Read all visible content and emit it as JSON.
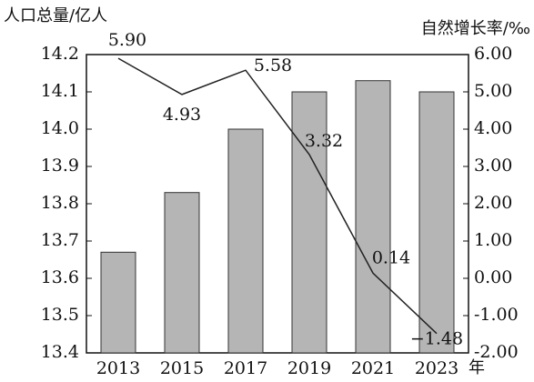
{
  "chart_data": {
    "type": "bar",
    "y_label": "人口总量/亿人",
    "y2_label": "自然增长率/‰",
    "x_unit": "年",
    "categories": [
      "2013",
      "2015",
      "2017",
      "2019",
      "2021",
      "2023"
    ],
    "series": [
      {
        "type": "bar",
        "color": "#b5b5b5",
        "values": [
          13.67,
          13.83,
          14.0,
          14.1,
          14.13,
          14.1
        ]
      },
      {
        "type": "line",
        "axis": "y2",
        "color": "#222222",
        "values": [
          5.9,
          4.93,
          5.58,
          3.32,
          0.14,
          -1.48
        ],
        "value_labels": [
          "5.90",
          "4.93",
          "5.58",
          "3.32",
          "0.14",
          "−1.48"
        ]
      }
    ],
    "ylim": [
      13.4,
      14.2
    ],
    "yticks": [
      13.4,
      13.5,
      13.6,
      13.7,
      13.8,
      13.9,
      {
        "value": 14,
        "label": "14.0"
      },
      14.1,
      14.2
    ],
    "y2lim": [
      -2,
      6
    ],
    "y2ticks": [
      {
        "value": -2,
        "label": "-2.00"
      },
      {
        "value": -1,
        "label": "-1.00"
      },
      {
        "value": 0,
        "label": "0.00"
      },
      {
        "value": 1,
        "label": "1.00"
      },
      {
        "value": 2,
        "label": "2.00"
      },
      {
        "value": 3,
        "label": "3.00"
      },
      {
        "value": 4,
        "label": "4.00"
      },
      {
        "value": 5,
        "label": "5.00"
      },
      {
        "value": 6,
        "label": "6.00"
      }
    ]
  }
}
